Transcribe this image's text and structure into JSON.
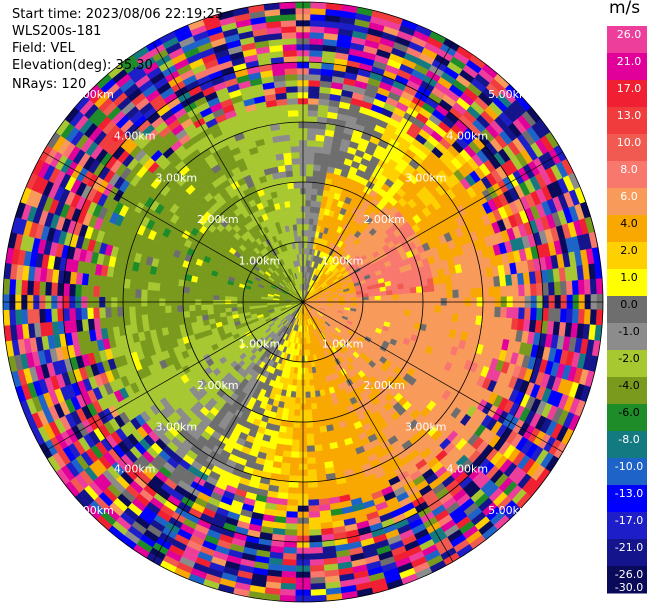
{
  "header": {
    "start_time": "Start time: 2023/08/06 22:19:25",
    "instrument": "WLS200s-181",
    "field": "Field: VEL",
    "elevation": "Elevation(deg): 35.30",
    "nrays": "NRays: 120"
  },
  "colorbar": {
    "unit": "m/s",
    "tick_labels": [
      "26.0",
      "21.0",
      "17.0",
      "13.0",
      "10.0",
      "8.0",
      "6.0",
      "4.0",
      "2.0",
      "1.0",
      "0.0",
      "-1.0",
      "-2.0",
      "-4.0",
      "-6.0",
      "-8.0",
      "-10.0",
      "-13.0",
      "-17.0",
      "-21.0",
      "-26.0",
      "-30.0"
    ],
    "colors_top_to_bottom": [
      "#ee3e9c",
      "#e1009a",
      "#f02032",
      "#f03c3c",
      "#f05a50",
      "#f8786e",
      "#f89a5a",
      "#f8a800",
      "#ffd000",
      "#ffff00",
      "#6e6e6e",
      "#8c8c8c",
      "#a8c832",
      "#7a9a1e",
      "#1e8c28",
      "#147a82",
      "#1e64c8",
      "#0000ff",
      "#1e1ec8",
      "#14148c",
      "#0a0a5a"
    ]
  },
  "chart_data": {
    "type": "heatmap",
    "title": "",
    "projection": "polar PPI (plan position indicator)",
    "field": "VEL",
    "units": "m/s",
    "nrays": 120,
    "range_rings_km": [
      1.0,
      2.0,
      3.0,
      4.0,
      5.0
    ],
    "range_ring_labels": [
      "1.00km",
      "2.00km",
      "3.00km",
      "4.00km",
      "5.00km"
    ],
    "approx_max_range_km": 5.0,
    "colormap_bounds": [
      -30,
      -26,
      -21,
      -17,
      -13,
      -10,
      -8,
      -6,
      -4,
      -2,
      -1,
      0,
      1,
      2,
      4,
      6,
      8,
      10,
      13,
      17,
      21,
      26
    ],
    "dominant_values_by_sector": [
      {
        "sector": "north-west to west (inner 3 km)",
        "velocity_range": [
          -6,
          -2
        ]
      },
      {
        "sector": "east (inner 3 km)",
        "velocity_range": [
          1,
          4
        ]
      },
      {
        "sector": "north-east core",
        "velocity_range": [
          6,
          10
        ]
      },
      {
        "sector": "south (inner 3 km)",
        "velocity_range": [
          -2,
          2
        ]
      },
      {
        "sector": "beyond 4 km",
        "velocity_range": [
          -30,
          26
        ]
      }
    ]
  }
}
